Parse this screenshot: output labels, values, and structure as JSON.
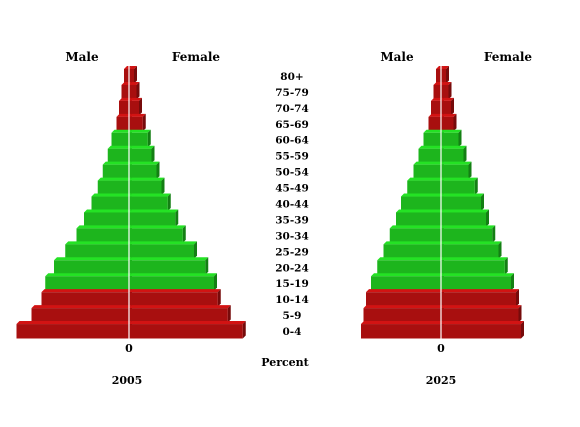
{
  "chart_data": {
    "type": "bar",
    "orientation": "horizontal-pyramid",
    "xlabel": "Percent",
    "zero_label": "0",
    "categories": [
      "80+",
      "75-79",
      "70-74",
      "65-69",
      "60-64",
      "55-59",
      "50-54",
      "45-49",
      "40-44",
      "35-39",
      "30-34",
      "25-29",
      "20-24",
      "15-19",
      "10-14",
      "5-9",
      "0-4"
    ],
    "colors": {
      "working_age": "#1db51d",
      "dependent": "#a80f0f"
    },
    "panels": [
      {
        "year_label": "2005",
        "male_label": "Male",
        "female_label": "Female",
        "male": [
          0.4,
          0.6,
          0.8,
          1.0,
          1.4,
          1.7,
          2.1,
          2.5,
          3.0,
          3.6,
          4.2,
          5.1,
          6.0,
          6.7,
          7.0,
          7.8,
          9.0
        ],
        "female": [
          0.4,
          0.6,
          0.8,
          1.1,
          1.5,
          1.8,
          2.2,
          2.6,
          3.1,
          3.7,
          4.3,
          5.2,
          6.1,
          6.8,
          7.1,
          7.9,
          9.1
        ]
      },
      {
        "year_label": "2025",
        "male_label": "Male",
        "female_label": "Female",
        "male": [
          0.4,
          0.6,
          0.8,
          1.0,
          1.4,
          1.8,
          2.2,
          2.7,
          3.2,
          3.6,
          4.1,
          4.6,
          5.1,
          5.6,
          6.0,
          6.2,
          6.4
        ],
        "female": [
          0.4,
          0.6,
          0.8,
          1.0,
          1.4,
          1.8,
          2.2,
          2.7,
          3.2,
          3.6,
          4.1,
          4.6,
          5.1,
          5.6,
          6.0,
          6.2,
          6.4
        ]
      }
    ]
  }
}
